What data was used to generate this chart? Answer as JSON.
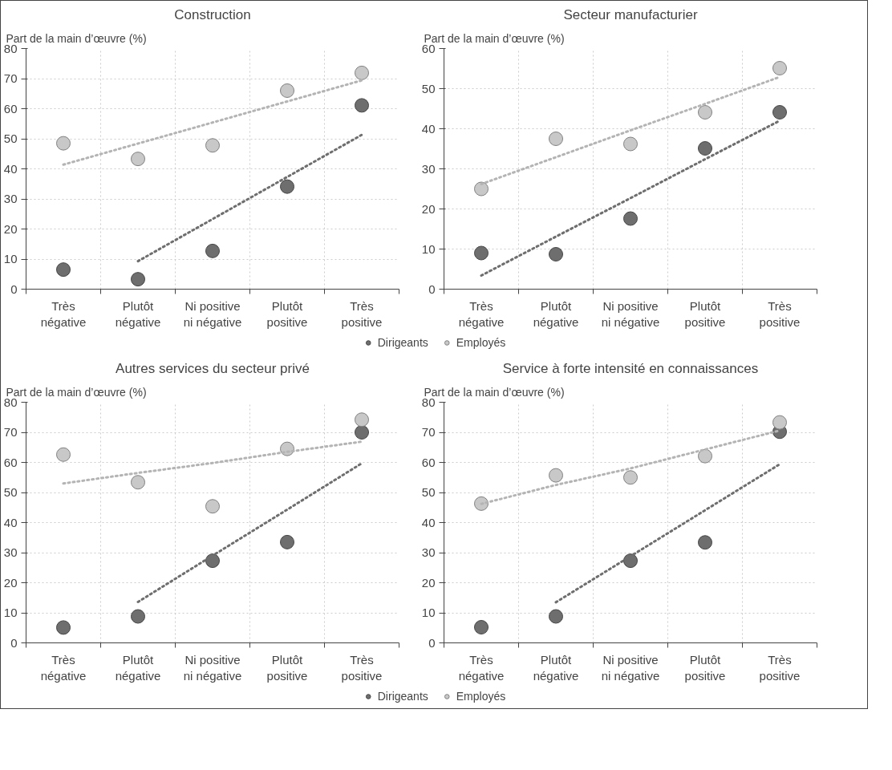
{
  "chart_data": [
    {
      "type": "scatter",
      "title": "Construction",
      "ylabel": "Part de la main d’œuvre (%)",
      "categories": [
        "Très\nnégative",
        "Plutôt\nnégative",
        "Ni positive\nni négative",
        "Plutôt\npositive",
        "Très\npositive"
      ],
      "ylim": [
        0,
        80
      ],
      "yticks": [
        0,
        10,
        20,
        30,
        40,
        50,
        60,
        70,
        80
      ],
      "grid": true,
      "marker": "circle",
      "legend": "bottom",
      "series": [
        {
          "name": "Dirigeants",
          "color": "#6e6e6e",
          "values": [
            6.5,
            3.3,
            12.7,
            34.1,
            61.1
          ]
        },
        {
          "name": "Employés",
          "color": "#c8c8c8",
          "values": [
            48.5,
            43.3,
            47.8,
            66.0,
            71.9
          ]
        },
        {
          "type": "line",
          "line_style": "dotted",
          "marker": "none",
          "color": "#6e6e6e",
          "values": [
            null,
            9.3,
            23.3,
            37.3,
            51.3
          ]
        },
        {
          "type": "line",
          "line_style": "dotted",
          "marker": "none",
          "color": "#b4b4b4",
          "values": [
            41.4,
            48.4,
            55.4,
            62.4,
            69.4
          ]
        }
      ]
    },
    {
      "type": "scatter",
      "title": "Secteur manufacturier",
      "ylabel": "Part de la main d’œuvre (%)",
      "categories": [
        "Très\nnégative",
        "Plutôt\nnégative",
        "Ni positive\nni négative",
        "Plutôt\npositive",
        "Très\npositive"
      ],
      "ylim": [
        0,
        60
      ],
      "yticks": [
        0,
        10,
        20,
        30,
        40,
        50,
        60
      ],
      "grid": true,
      "marker": "circle",
      "series": [
        {
          "color": "#6e6e6e",
          "values": [
            9.0,
            8.7,
            17.6,
            35.1,
            44.1
          ]
        },
        {
          "color": "#c8c8c8",
          "values": [
            25.0,
            37.5,
            36.2,
            44.1,
            55.1
          ]
        },
        {
          "type": "line",
          "line_style": "dotted",
          "marker": "none",
          "color": "#6e6e6e",
          "values": [
            3.4,
            13.1,
            22.7,
            32.4,
            42.0
          ]
        },
        {
          "type": "line",
          "line_style": "dotted",
          "marker": "none",
          "color": "#b4b4b4",
          "values": [
            26.2,
            32.9,
            39.6,
            46.2,
            52.9
          ]
        }
      ]
    },
    {
      "type": "scatter",
      "title": "Autres services du secteur privé",
      "ylabel": "Part de la main d’œuvre (%)",
      "categories": [
        "Très\nnégative",
        "Plutôt\nnégative",
        "Ni positive\nni négative",
        "Plutôt\npositive",
        "Très\npositive"
      ],
      "ylim": [
        0,
        80
      ],
      "yticks": [
        0,
        10,
        20,
        30,
        40,
        50,
        60,
        70,
        80
      ],
      "grid": true,
      "marker": "circle",
      "legend": "bottom",
      "series": [
        {
          "name": "Dirigeants",
          "color": "#6e6e6e",
          "values": [
            5.1,
            8.8,
            27.3,
            33.5,
            70.0
          ]
        },
        {
          "name": "Employés",
          "color": "#c8c8c8",
          "values": [
            62.6,
            53.4,
            45.4,
            64.5,
            74.2
          ]
        },
        {
          "type": "line",
          "line_style": "dotted",
          "marker": "none",
          "color": "#6e6e6e",
          "values": [
            null,
            13.6,
            29.0,
            44.3,
            59.7
          ]
        },
        {
          "type": "line",
          "line_style": "dotted",
          "marker": "none",
          "color": "#b4b4b4",
          "values": [
            53.0,
            56.5,
            59.8,
            63.5,
            66.9
          ]
        }
      ]
    },
    {
      "type": "scatter",
      "title": "Service à forte intensité en connaissances",
      "ylabel": "Part de la main d’œuvre (%)",
      "categories": [
        "Très\nnégative",
        "Plutôt\nnégative",
        "Ni positive\nni négative",
        "Plutôt\npositive",
        "Très\npositive"
      ],
      "ylim": [
        0,
        80
      ],
      "yticks": [
        0,
        10,
        20,
        30,
        40,
        50,
        60,
        70,
        80
      ],
      "grid": true,
      "marker": "circle",
      "series": [
        {
          "color": "#6e6e6e",
          "values": [
            5.2,
            8.8,
            27.3,
            33.4,
            70.2
          ]
        },
        {
          "color": "#c8c8c8",
          "values": [
            46.3,
            55.7,
            55.0,
            62.1,
            73.3
          ]
        },
        {
          "type": "line",
          "line_style": "dotted",
          "marker": "none",
          "color": "#6e6e6e",
          "values": [
            null,
            13.5,
            28.8,
            44.1,
            59.4
          ]
        },
        {
          "type": "line",
          "line_style": "dotted",
          "marker": "none",
          "color": "#b4b4b4",
          "values": [
            46.2,
            52.5,
            58.0,
            64.3,
            70.6
          ]
        }
      ]
    }
  ]
}
